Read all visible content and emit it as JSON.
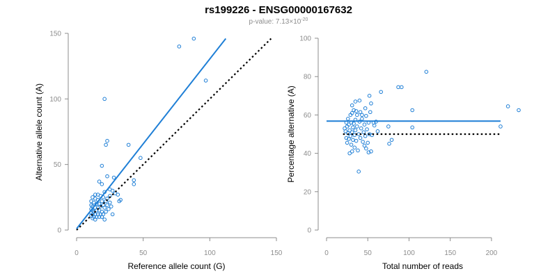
{
  "title": "rs199226 - ENSG00000167632",
  "subtitle": {
    "prefix": "p-value: 7.13×10",
    "exponent": "-20"
  },
  "colors": {
    "points": "#1f7fd6",
    "fit_line": "#1f7fd6",
    "reference_line": "#000000",
    "axis": "#8c8c8c"
  },
  "chart_data": [
    {
      "type": "scatter",
      "xlabel": "Reference allele count (G)",
      "ylabel": "Alternative allele count (A)",
      "xlim": [
        0,
        150
      ],
      "ylim": [
        0,
        150
      ],
      "xticks": [
        0,
        50,
        100,
        150
      ],
      "yticks": [
        0,
        50,
        100,
        150
      ],
      "grid": false,
      "fit_line": {
        "x": [
          0,
          112
        ],
        "y": [
          1,
          146
        ]
      },
      "reference_line": {
        "x": [
          0,
          146
        ],
        "y": [
          0,
          146
        ]
      },
      "points": [
        [
          77,
          140
        ],
        [
          88,
          146
        ],
        [
          97,
          114
        ],
        [
          21,
          100
        ],
        [
          23,
          68
        ],
        [
          22,
          65
        ],
        [
          39,
          65
        ],
        [
          48,
          55
        ],
        [
          19,
          49
        ],
        [
          23,
          41
        ],
        [
          28,
          40
        ],
        [
          17,
          37
        ],
        [
          19,
          35
        ],
        [
          43,
          38
        ],
        [
          43,
          35
        ],
        [
          25,
          31
        ],
        [
          27,
          30
        ],
        [
          21,
          29
        ],
        [
          29,
          28
        ],
        [
          31,
          27
        ],
        [
          14,
          27
        ],
        [
          16,
          27
        ],
        [
          18,
          26
        ],
        [
          20,
          25
        ],
        [
          23,
          24
        ],
        [
          25,
          26
        ],
        [
          12,
          25
        ],
        [
          14,
          24
        ],
        [
          16,
          23
        ],
        [
          19,
          22
        ],
        [
          22,
          22
        ],
        [
          25,
          21
        ],
        [
          33,
          23
        ],
        [
          32,
          22
        ],
        [
          11,
          22
        ],
        [
          13,
          21
        ],
        [
          15,
          20
        ],
        [
          17,
          20
        ],
        [
          20,
          19
        ],
        [
          23,
          19
        ],
        [
          26,
          18
        ],
        [
          11,
          19
        ],
        [
          12,
          18
        ],
        [
          14,
          17
        ],
        [
          16,
          17
        ],
        [
          18,
          18
        ],
        [
          21,
          17
        ],
        [
          24,
          16
        ],
        [
          11,
          16
        ],
        [
          12,
          15
        ],
        [
          13,
          14
        ],
        [
          15,
          15
        ],
        [
          17,
          15
        ],
        [
          19,
          14
        ],
        [
          22,
          14
        ],
        [
          11,
          13
        ],
        [
          12,
          12
        ],
        [
          14,
          12
        ],
        [
          16,
          12
        ],
        [
          18,
          12
        ],
        [
          20,
          12
        ],
        [
          27,
          12
        ],
        [
          11,
          11
        ],
        [
          13,
          10
        ],
        [
          15,
          10
        ],
        [
          17,
          10
        ],
        [
          19,
          10
        ],
        [
          12,
          9
        ],
        [
          14,
          8
        ],
        [
          21,
          8
        ]
      ]
    },
    {
      "type": "scatter",
      "xlabel": "Total number of reads",
      "ylabel": "Percentage alternative (A)",
      "xlim": [
        0,
        233
      ],
      "ylim": [
        0,
        100
      ],
      "xticks": [
        0,
        50,
        100,
        150,
        200
      ],
      "yticks": [
        0,
        20,
        40,
        60,
        80,
        100
      ],
      "grid": false,
      "fit_line": {
        "x": [
          0,
          211
        ],
        "y": [
          56.8,
          56.8
        ]
      },
      "reference_line": {
        "x": [
          20,
          211
        ],
        "y": [
          50,
          50
        ]
      },
      "points": [
        [
          121,
          82.5
        ],
        [
          87,
          74.5
        ],
        [
          91,
          74.5
        ],
        [
          66,
          72
        ],
        [
          52,
          70
        ],
        [
          104,
          62.5
        ],
        [
          233,
          62.5
        ],
        [
          220,
          64.5
        ],
        [
          211,
          54
        ],
        [
          35,
          67
        ],
        [
          40,
          67.5
        ],
        [
          31,
          65
        ],
        [
          47,
          63.5
        ],
        [
          36,
          62
        ],
        [
          41,
          61.5
        ],
        [
          43,
          60
        ],
        [
          31,
          61
        ],
        [
          54,
          66
        ],
        [
          57,
          56
        ],
        [
          60,
          56.5
        ],
        [
          62,
          51.5
        ],
        [
          75,
          54
        ],
        [
          104,
          53.5
        ],
        [
          79,
          47
        ],
        [
          76,
          45
        ],
        [
          54,
          41
        ],
        [
          51,
          40.5
        ],
        [
          46,
          44
        ],
        [
          48,
          42.5
        ],
        [
          39,
          30.5
        ],
        [
          22,
          53
        ],
        [
          23,
          51.5
        ],
        [
          24,
          56
        ],
        [
          24,
          48
        ],
        [
          25,
          54
        ],
        [
          25,
          45.5
        ],
        [
          26,
          50.5
        ],
        [
          26,
          58
        ],
        [
          27,
          47.5
        ],
        [
          27,
          55
        ],
        [
          28,
          52
        ],
        [
          28,
          40
        ],
        [
          29,
          60
        ],
        [
          29,
          49
        ],
        [
          30,
          44.5
        ],
        [
          30,
          56
        ],
        [
          31,
          51
        ],
        [
          31,
          41
        ],
        [
          32,
          53.5
        ],
        [
          32,
          47
        ],
        [
          33,
          62.5
        ],
        [
          33,
          55.5
        ],
        [
          34,
          49.5
        ],
        [
          34,
          43
        ],
        [
          35,
          57.5
        ],
        [
          35,
          52
        ],
        [
          36,
          46.5
        ],
        [
          37,
          60
        ],
        [
          37,
          54
        ],
        [
          38,
          41.5
        ],
        [
          39,
          50
        ],
        [
          40,
          56.5
        ],
        [
          41,
          48
        ],
        [
          42,
          53
        ],
        [
          43,
          58
        ],
        [
          44,
          46
        ],
        [
          45,
          51
        ],
        [
          46,
          55
        ],
        [
          47,
          49
        ],
        [
          48,
          59.5
        ],
        [
          49,
          52.5
        ],
        [
          50,
          45.5
        ],
        [
          51,
          56
        ],
        [
          52,
          50
        ],
        [
          53,
          61.5
        ],
        [
          55,
          49.5
        ],
        [
          58,
          54.5
        ]
      ]
    }
  ]
}
